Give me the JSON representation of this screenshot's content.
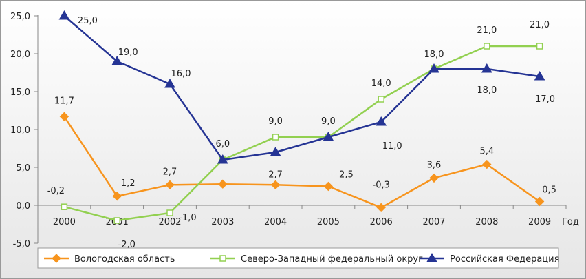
{
  "chart_data": {
    "type": "line",
    "title": "",
    "xlabel": "Год",
    "ylabel": "",
    "categories": [
      "2000",
      "2001",
      "2002",
      "2003",
      "2004",
      "2005",
      "2006",
      "2007",
      "2008",
      "2009"
    ],
    "ylim": [
      -5,
      25
    ],
    "yticks": [
      "25,0",
      "20,0",
      "15,0",
      "10,0",
      "5,0",
      "0,0",
      "-5,0"
    ],
    "ytick_values": [
      25,
      20,
      15,
      10,
      5,
      0,
      -5
    ],
    "grid": false,
    "legend_position": "bottom",
    "series": [
      {
        "name": "Вологодская область",
        "color": "#f7941d",
        "marker": "diamond",
        "values": [
          11.7,
          1.2,
          2.7,
          2.8,
          2.7,
          2.5,
          -0.3,
          3.6,
          5.4,
          0.5
        ],
        "labels": [
          "11,7",
          "1,2",
          "2,7",
          "",
          "2,7",
          "2,5",
          "-0,3",
          "3,6",
          "5,4",
          "0,5"
        ]
      },
      {
        "name": "Северо-Западный федеральный округ",
        "color": "#92d050",
        "marker": "square",
        "values": [
          -0.2,
          -2.0,
          -1.0,
          6.0,
          9.0,
          9.0,
          14.0,
          18.0,
          21.0,
          21.0
        ],
        "labels": [
          "-0,2",
          "-2,0",
          "-1,0",
          "6,0",
          "9,0",
          "9,0",
          "14,0",
          "18,0",
          "21,0",
          "21,0"
        ]
      },
      {
        "name": "Российская Федерация",
        "color": "#253494",
        "marker": "triangle",
        "values": [
          25.0,
          19.0,
          16.0,
          6.0,
          7.0,
          9.0,
          11.0,
          18.0,
          18.0,
          17.0
        ],
        "labels": [
          "25,0",
          "19,0",
          "16,0",
          "",
          "",
          "",
          "11,0",
          "",
          "18,0",
          "17,0"
        ]
      }
    ]
  }
}
